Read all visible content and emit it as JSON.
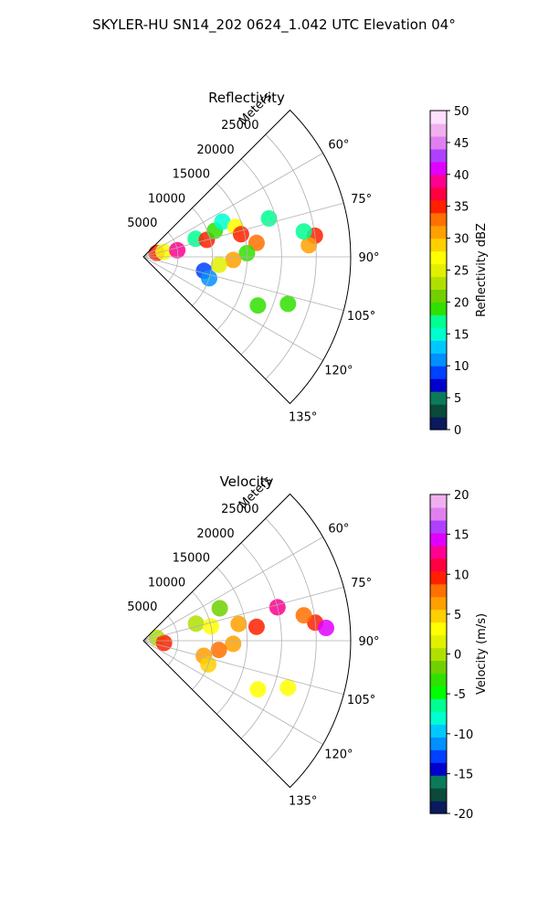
{
  "figure": {
    "suptitle": "SKYLER-HU  SN14_202  0624_1.042 UTC Elevation 04°"
  },
  "chart_data": [
    {
      "type": "polar-sector",
      "title": "Reflectivity",
      "range_label": "Meters",
      "range_ticks": [
        5000,
        10000,
        15000,
        20000,
        25000
      ],
      "range_max": 30000,
      "azimuth_range_deg": [
        45,
        135
      ],
      "azimuth_ticks": [
        {
          "deg": 60,
          "label": "60°"
        },
        {
          "deg": 75,
          "label": "75°"
        },
        {
          "deg": 90,
          "label": "90°"
        },
        {
          "deg": 105,
          "label": "105°"
        },
        {
          "deg": 120,
          "label": "120°"
        },
        {
          "deg": 135,
          "label": "135°"
        }
      ],
      "colorbar": {
        "label": "Reflectivity dBZ",
        "min": 0,
        "max": 50,
        "ticks": [
          0,
          5,
          10,
          15,
          20,
          25,
          30,
          35,
          40,
          45,
          50
        ],
        "colors": [
          "#0a1a5c",
          "#0b4a3a",
          "#0a7a5a",
          "#0000cc",
          "#0040ff",
          "#0090ff",
          "#00c8ff",
          "#00ffd0",
          "#00ff90",
          "#30e000",
          "#70d000",
          "#b0e000",
          "#e0f000",
          "#ffff00",
          "#ffd000",
          "#ffa000",
          "#ff7000",
          "#ff2000",
          "#ff0040",
          "#ff0090",
          "#e000ff",
          "#b040ff",
          "#e080f0",
          "#f0b0f0",
          "#ffe0ff"
        ]
      },
      "cells": [
        {
          "range": 2000,
          "az": 74,
          "color": "#ff2000"
        },
        {
          "range": 3000,
          "az": 76,
          "color": "#ffff00"
        },
        {
          "range": 5000,
          "az": 79,
          "color": "#ff0090"
        },
        {
          "range": 8000,
          "az": 71,
          "color": "#00ff90"
        },
        {
          "range": 9500,
          "az": 75,
          "color": "#ff2000"
        },
        {
          "range": 11000,
          "az": 70,
          "color": "#30e000"
        },
        {
          "range": 12500,
          "az": 66,
          "color": "#00ffd0"
        },
        {
          "range": 14000,
          "az": 72,
          "color": "#ffff00"
        },
        {
          "range": 14500,
          "az": 77,
          "color": "#ff2000"
        },
        {
          "range": 16500,
          "az": 83,
          "color": "#ff7000"
        },
        {
          "range": 15000,
          "az": 88,
          "color": "#30e000"
        },
        {
          "range": 13000,
          "az": 92,
          "color": "#ffa000"
        },
        {
          "range": 11000,
          "az": 96,
          "color": "#e0f000"
        },
        {
          "range": 9000,
          "az": 103,
          "color": "#0040ff"
        },
        {
          "range": 10000,
          "az": 108,
          "color": "#0090ff"
        },
        {
          "range": 25000,
          "az": 83,
          "color": "#ff2000"
        },
        {
          "range": 24000,
          "az": 86,
          "color": "#ffa000"
        },
        {
          "range": 23500,
          "az": 81,
          "color": "#00ff90"
        },
        {
          "range": 22000,
          "az": 108,
          "color": "#30e000"
        },
        {
          "range": 18000,
          "az": 113,
          "color": "#30e000"
        },
        {
          "range": 19000,
          "az": 73,
          "color": "#00ff90"
        }
      ]
    },
    {
      "type": "polar-sector",
      "title": "Velocity",
      "range_label": "Meters",
      "range_ticks": [
        5000,
        10000,
        15000,
        20000,
        25000
      ],
      "range_max": 30000,
      "azimuth_range_deg": [
        45,
        135
      ],
      "azimuth_ticks": [
        {
          "deg": 60,
          "label": "60°"
        },
        {
          "deg": 75,
          "label": "75°"
        },
        {
          "deg": 90,
          "label": "90°"
        },
        {
          "deg": 105,
          "label": "105°"
        },
        {
          "deg": 120,
          "label": "120°"
        },
        {
          "deg": 135,
          "label": "135°"
        }
      ],
      "colorbar": {
        "label": "Velocity (m/s)",
        "min": -20,
        "max": 20,
        "ticks": [
          -20,
          -15,
          -10,
          -5,
          0,
          5,
          10,
          15,
          20
        ],
        "colors": [
          "#0a1a5c",
          "#0b4a3a",
          "#0a7a5a",
          "#0000cc",
          "#0040ff",
          "#0090ff",
          "#00c8ff",
          "#00ffd0",
          "#00ff90",
          "#00ff00",
          "#30e000",
          "#70d000",
          "#b0e000",
          "#e0f000",
          "#ffff00",
          "#ffd000",
          "#ffa000",
          "#ff7000",
          "#ff2000",
          "#ff0040",
          "#ff0090",
          "#e000ff",
          "#b040ff",
          "#e080f0",
          "#f0b0f0"
        ]
      },
      "cells": [
        {
          "range": 2000,
          "az": 78,
          "color": "#b0e000"
        },
        {
          "range": 3000,
          "az": 96,
          "color": "#ff2000"
        },
        {
          "range": 8000,
          "az": 72,
          "color": "#b0e000"
        },
        {
          "range": 10000,
          "az": 78,
          "color": "#ffff00"
        },
        {
          "range": 12000,
          "az": 67,
          "color": "#70d000"
        },
        {
          "range": 14000,
          "az": 80,
          "color": "#ffa000"
        },
        {
          "range": 16500,
          "az": 83,
          "color": "#ff2000"
        },
        {
          "range": 13000,
          "az": 92,
          "color": "#ffa000"
        },
        {
          "range": 11000,
          "az": 97,
          "color": "#ff7000"
        },
        {
          "range": 9000,
          "az": 104,
          "color": "#ffa000"
        },
        {
          "range": 10000,
          "az": 110,
          "color": "#ffd000"
        },
        {
          "range": 25000,
          "az": 84,
          "color": "#ff2000"
        },
        {
          "range": 26500,
          "az": 86,
          "color": "#e000ff"
        },
        {
          "range": 23500,
          "az": 81,
          "color": "#ff7000"
        },
        {
          "range": 22000,
          "az": 108,
          "color": "#ffff00"
        },
        {
          "range": 18000,
          "az": 113,
          "color": "#ffff00"
        },
        {
          "range": 20000,
          "az": 76,
          "color": "#ff0090"
        }
      ]
    }
  ]
}
